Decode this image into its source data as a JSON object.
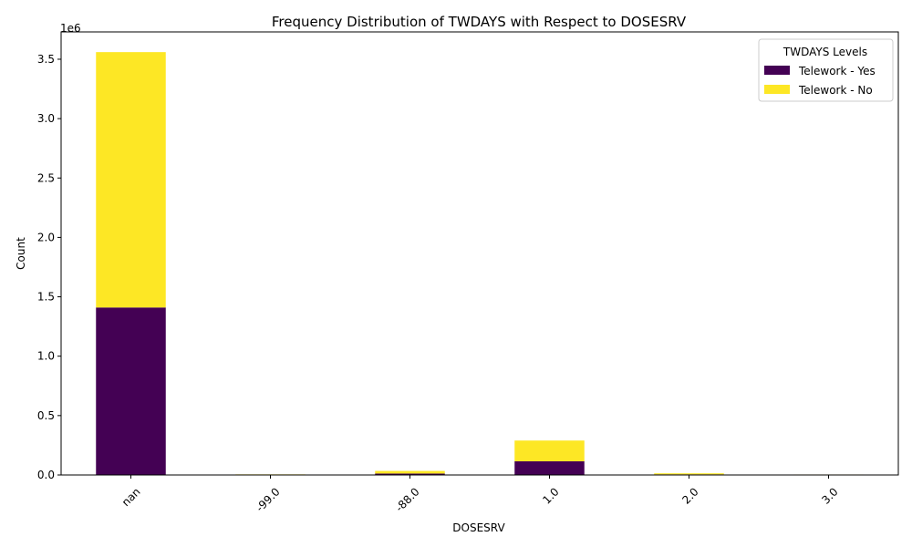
{
  "chart_data": {
    "type": "bar",
    "stacked": true,
    "title": "Frequency Distribution of TWDAYS with Respect to DOSESRV",
    "xlabel": "DOSESRV",
    "ylabel": "Count",
    "y_offset_label": "1e6",
    "categories": [
      "nan",
      "-99.0",
      "-88.0",
      "1.0",
      "2.0",
      "3.0"
    ],
    "ylim": [
      0,
      3.73
    ],
    "yticks": [
      0.0,
      0.5,
      1.0,
      1.5,
      2.0,
      2.5,
      3.0,
      3.5
    ],
    "ytick_labels": [
      "0.0",
      "0.5",
      "1.0",
      "1.5",
      "2.0",
      "2.5",
      "3.0",
      "3.5"
    ],
    "series": [
      {
        "name": "Telework - Yes",
        "color": "#440154",
        "values": [
          1.41,
          0.001,
          0.012,
          0.115,
          0.005,
          0.001
        ]
      },
      {
        "name": "Telework - No",
        "color": "#fde725",
        "values": [
          2.15,
          0.004,
          0.022,
          0.175,
          0.009,
          0.003
        ]
      }
    ],
    "legend": {
      "title": "TWDAYS Levels",
      "placement": "top-right"
    },
    "grid": false,
    "x_tick_rotation": 45
  }
}
